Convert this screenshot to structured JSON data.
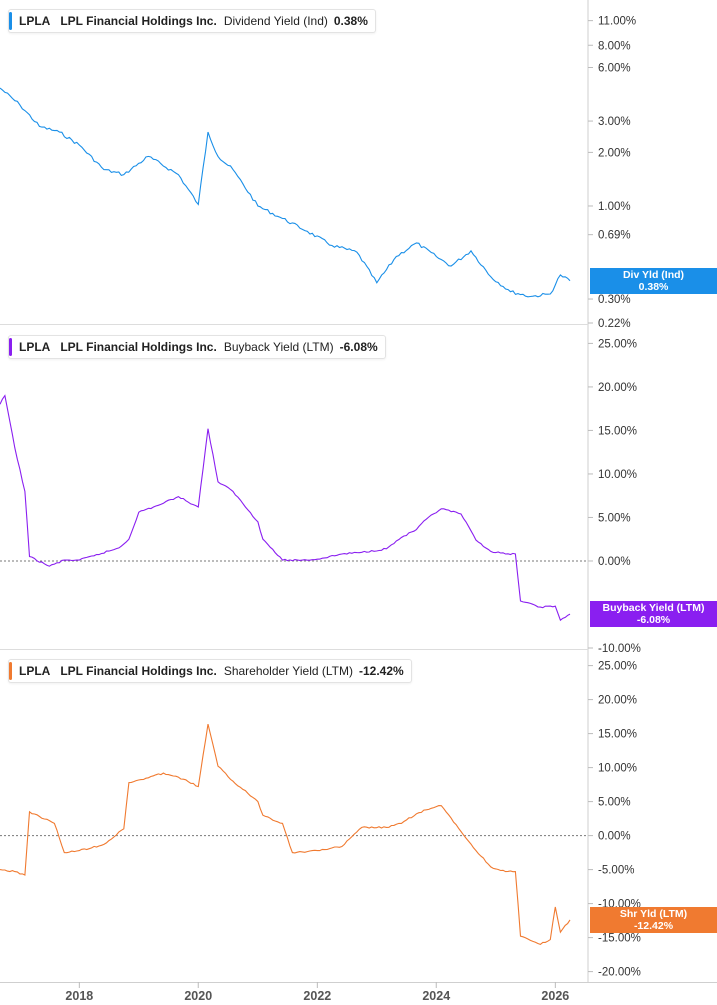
{
  "ticker": "LPLA",
  "company": "LPL Financial Holdings Inc.",
  "x_axis": {
    "labels": [
      "2018",
      "2020",
      "2022",
      "2024",
      "2026"
    ]
  },
  "chart_data": [
    {
      "type": "line",
      "metric": "Dividend Yield (Ind)",
      "value_text": "0.38%",
      "flag_label": "Div Yld (Ind)",
      "flag_value": "0.38%",
      "color": "#1a8fe8",
      "scale": "log",
      "ylim": [
        0.22,
        14
      ],
      "yticks": [
        "11.00%",
        "8.00%",
        "6.00%",
        "3.00%",
        "2.00%",
        "1.00%",
        "0.69%",
        "0.30%",
        "0.22%"
      ],
      "ytick_values": [
        11,
        8,
        6,
        3,
        2,
        1,
        0.69,
        0.3,
        0.22
      ],
      "hidden_tick": "0.37%",
      "zero_line": false,
      "x": [
        "2016-09",
        "2017-01",
        "2017-05",
        "2017-09",
        "2018-01",
        "2018-06",
        "2018-10",
        "2019-03",
        "2019-09",
        "2020-01",
        "2020-03",
        "2020-05",
        "2020-08",
        "2021-01",
        "2021-06",
        "2021-11",
        "2022-04",
        "2022-09",
        "2023-01",
        "2023-05",
        "2023-09",
        "2024-01",
        "2024-04",
        "2024-08",
        "2024-12",
        "2025-04",
        "2025-08",
        "2025-12",
        "2026-02",
        "2026-04"
      ],
      "values": [
        4.6,
        3.7,
        2.8,
        2.6,
        2.2,
        1.6,
        1.5,
        1.9,
        1.5,
        1.02,
        2.6,
        1.9,
        1.6,
        1.0,
        0.85,
        0.72,
        0.6,
        0.55,
        0.37,
        0.52,
        0.62,
        0.52,
        0.46,
        0.56,
        0.4,
        0.33,
        0.31,
        0.32,
        0.41,
        0.38
      ]
    },
    {
      "type": "line",
      "metric": "Buyback Yield (LTM)",
      "value_text": "-6.08%",
      "flag_label": "Buyback Yield (LTM)",
      "flag_value": "-6.08%",
      "color": "#8a1ff0",
      "scale": "linear",
      "ylim": [
        -10,
        27
      ],
      "yticks": [
        "25.00%",
        "20.00%",
        "15.00%",
        "10.00%",
        "5.00%",
        "0.00%",
        "-10.00%"
      ],
      "ytick_values": [
        25,
        20,
        15,
        10,
        5,
        0,
        -10
      ],
      "zero_line": true,
      "x": [
        "2016-09",
        "2016-10",
        "2016-12",
        "2017-02",
        "2017-03",
        "2017-07",
        "2017-10",
        "2018-01",
        "2018-04",
        "2018-09",
        "2018-11",
        "2019-01",
        "2019-05",
        "2019-09",
        "2020-01",
        "2020-03",
        "2020-05",
        "2020-08",
        "2021-01",
        "2021-02",
        "2021-06",
        "2021-10",
        "2022-01",
        "2022-06",
        "2022-10",
        "2023-03",
        "2023-06",
        "2023-09",
        "2023-11",
        "2024-02",
        "2024-06",
        "2024-09",
        "2024-12",
        "2025-03",
        "2025-05",
        "2025-06",
        "2025-10",
        "2026-01",
        "2026-02",
        "2026-04"
      ],
      "values": [
        18,
        19,
        13,
        8,
        0.5,
        -0.6,
        0.1,
        0.1,
        0.6,
        1.5,
        2.5,
        5.6,
        6.4,
        7.4,
        6.2,
        15.2,
        9.1,
        8.0,
        4.5,
        2.5,
        0.1,
        0.1,
        0.2,
        0.8,
        1.0,
        1.4,
        2.7,
        3.6,
        4.8,
        6.0,
        5.4,
        2.4,
        1.1,
        0.8,
        0.8,
        -4.6,
        -5.3,
        -5.2,
        -6.8,
        -6.1
      ]
    },
    {
      "type": "line",
      "metric": "Shareholder Yield (LTM)",
      "value_text": "-12.42%",
      "flag_label": "Shr Yld (LTM)",
      "flag_value": "-12.42%",
      "color": "#f07a30",
      "scale": "linear",
      "ylim": [
        -20.5,
        27
      ],
      "yticks": [
        "25.00%",
        "20.00%",
        "15.00%",
        "10.00%",
        "5.00%",
        "0.00%",
        "-5.00%",
        "-10.00%",
        "-15.00%",
        "-20.00%"
      ],
      "ytick_values": [
        25,
        20,
        15,
        10,
        5,
        0,
        -5,
        -10,
        -15,
        -20
      ],
      "zero_line": true,
      "x": [
        "2016-09",
        "2016-12",
        "2017-02",
        "2017-03",
        "2017-08",
        "2017-10",
        "2018-01",
        "2018-06",
        "2018-10",
        "2018-11",
        "2019-03",
        "2019-06",
        "2019-10",
        "2020-01",
        "2020-03",
        "2020-05",
        "2020-08",
        "2021-01",
        "2021-02",
        "2021-06",
        "2021-08",
        "2021-10",
        "2022-01",
        "2022-06",
        "2022-10",
        "2023-03",
        "2023-06",
        "2023-09",
        "2023-11",
        "2024-02",
        "2024-06",
        "2024-09",
        "2024-12",
        "2025-03",
        "2025-05",
        "2025-06",
        "2025-10",
        "2025-12",
        "2026-01",
        "2026-02",
        "2026-04"
      ],
      "values": [
        -5.0,
        -5.3,
        -5.8,
        3.5,
        1.8,
        -2.5,
        -2.2,
        -1.3,
        1.0,
        7.8,
        8.5,
        9.2,
        8.3,
        7.2,
        16.4,
        10.2,
        8.0,
        5.0,
        3.0,
        1.8,
        -2.5,
        -2.4,
        -2.2,
        -1.6,
        1.2,
        1.2,
        1.8,
        3.2,
        3.8,
        4.4,
        0.6,
        -2.2,
        -4.6,
        -5.3,
        -5.3,
        -14.8,
        -16.0,
        -15.3,
        -10.5,
        -14.2,
        -12.4
      ]
    }
  ]
}
